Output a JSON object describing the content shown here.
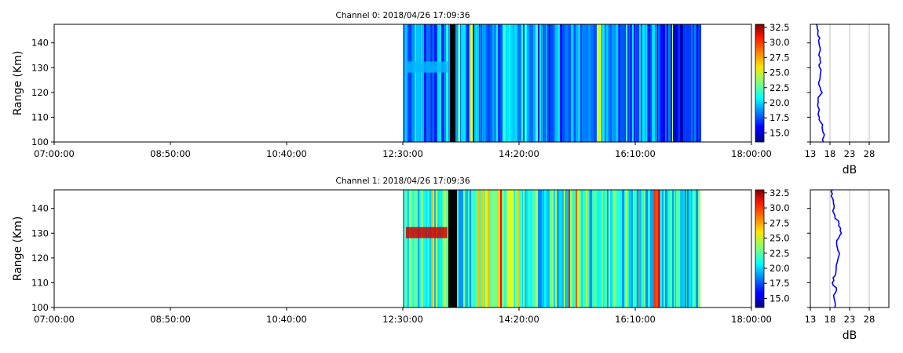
{
  "chart_data": [
    {
      "type": "heatmap",
      "title": "Channel 0: 2018/04/26 17:09:36",
      "ylabel": "Range (Km)",
      "xlabel": "",
      "xlim": [
        "07:00:00",
        "18:00:00"
      ],
      "ylim": [
        100,
        147.5
      ],
      "x_ticks": [
        "07:00:00",
        "08:50:00",
        "10:40:00",
        "12:30:00",
        "14:20:00",
        "16:10:00",
        "18:00:00"
      ],
      "y_ticks": [
        100,
        110,
        120,
        130,
        140
      ],
      "data_extent_x": [
        "12:30:00",
        "17:11:00"
      ],
      "colormap": "jet",
      "colorbar": {
        "range": [
          13.5,
          33.0
        ],
        "ticks": [
          15.0,
          17.5,
          20.0,
          22.5,
          25.0,
          27.5,
          30.0,
          32.5
        ]
      },
      "profile": {
        "type": "line",
        "xlabel": "dB",
        "x_ticks": [
          13,
          18,
          23,
          28
        ],
        "xlim": [
          13,
          33
        ],
        "color": "#0000ff",
        "range_km": [
          100,
          102,
          104,
          106,
          108,
          110,
          112,
          114,
          116,
          118,
          120,
          122,
          124,
          126,
          128,
          130,
          132,
          134,
          136,
          138,
          140,
          142,
          144,
          146,
          147.5
        ],
        "db": [
          16.3,
          16.4,
          16.2,
          16.0,
          15.6,
          15.3,
          15.1,
          15.0,
          15.0,
          15.0,
          16.0,
          15.5,
          15.1,
          15.5,
          15.6,
          15.4,
          15.6,
          15.5,
          15.3,
          15.5,
          15.2,
          15.4,
          14.9,
          14.7,
          14.5
        ]
      }
    },
    {
      "type": "heatmap",
      "title": "Channel 1: 2018/04/26 17:09:36",
      "ylabel": "Range (Km)",
      "xlabel": "",
      "xlim": [
        "07:00:00",
        "18:00:00"
      ],
      "ylim": [
        100,
        147.5
      ],
      "x_ticks": [
        "07:00:00",
        "08:50:00",
        "10:40:00",
        "12:30:00",
        "14:20:00",
        "16:10:00",
        "18:00:00"
      ],
      "y_ticks": [
        100,
        110,
        120,
        130,
        140
      ],
      "data_extent_x": [
        "12:30:00",
        "17:11:00"
      ],
      "colormap": "jet",
      "colorbar": {
        "range": [
          13.5,
          33.0
        ],
        "ticks": [
          15.0,
          17.5,
          20.0,
          22.5,
          25.0,
          27.5,
          30.0,
          32.5
        ]
      },
      "profile": {
        "type": "line",
        "xlabel": "dB",
        "x_ticks": [
          13,
          18,
          23,
          28
        ],
        "xlim": [
          13,
          33
        ],
        "color": "#0000ff",
        "range_km": [
          100,
          102,
          104,
          106,
          108,
          110,
          112,
          114,
          116,
          118,
          120,
          122,
          124,
          126,
          128,
          130,
          132,
          134,
          136,
          138,
          140,
          142,
          144,
          146,
          147.5
        ],
        "db": [
          19.2,
          19.3,
          19.0,
          19.4,
          19.6,
          18.6,
          18.8,
          19.5,
          19.6,
          19.8,
          20.1,
          20.4,
          19.9,
          19.7,
          20.2,
          20.9,
          20.7,
          20.3,
          19.3,
          19.0,
          19.0,
          18.9,
          18.7,
          18.6,
          18.6
        ]
      }
    }
  ]
}
